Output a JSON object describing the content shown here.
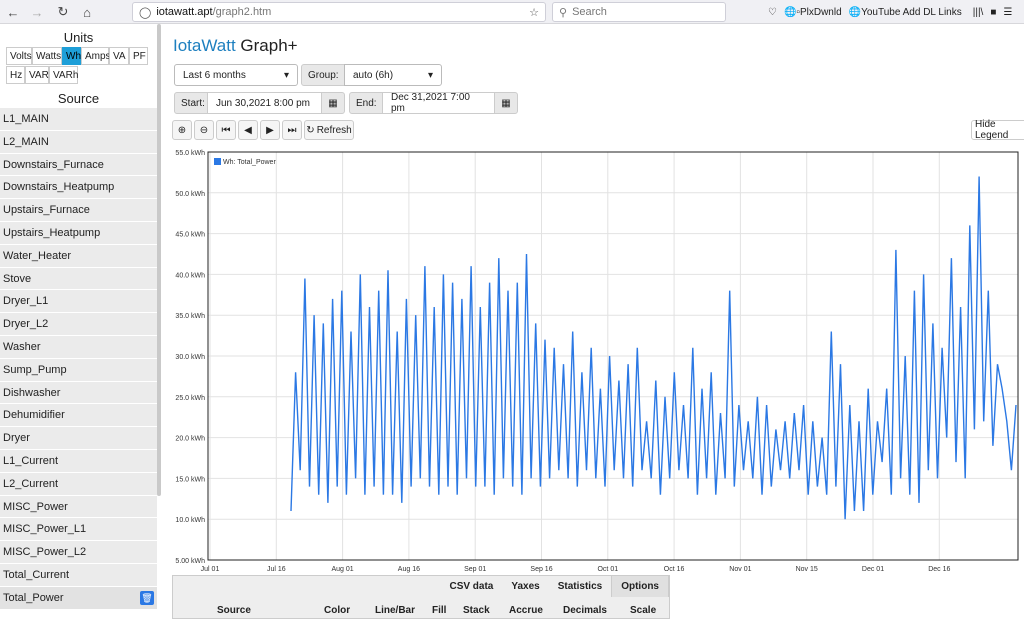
{
  "browser": {
    "url_host": "iotawatt.apt",
    "url_path": "/graph2.htm",
    "search_placeholder": "Search",
    "bookmarks": [
      "PlxDwnld",
      "YouTube Add DL Links"
    ]
  },
  "app": {
    "brand": "IotaWatt",
    "title": "Graph+"
  },
  "sidebar": {
    "units_title": "Units",
    "units": [
      "Volts",
      "Watts",
      "Wh",
      "Amps",
      "VA",
      "PF",
      "Hz",
      "VAR",
      "VARh"
    ],
    "active_unit": "Wh",
    "source_title": "Source",
    "sources": [
      "L1_MAIN",
      "L2_MAIN",
      "Downstairs_Furnace",
      "Downstairs_Heatpump",
      "Upstairs_Furnace",
      "Upstairs_Heatpump",
      "Water_Heater",
      "Stove",
      "Dryer_L1",
      "Dryer_L2",
      "Washer",
      "Sump_Pump",
      "Dishwasher",
      "Dehumidifier",
      "Dryer",
      "L1_Current",
      "L2_Current",
      "MISC_Power",
      "MISC_Power_L1",
      "MISC_Power_L2",
      "Total_Current",
      "Total_Power"
    ]
  },
  "controls": {
    "period": "Last 6 months",
    "group_label": "Group:",
    "group": "auto (6h)",
    "start_label": "Start:",
    "start_value": "Jun 30,2021 8:00 pm",
    "end_label": "End:",
    "end_value": "Dec 31,2021 7:00 pm",
    "refresh": "Refresh",
    "hide_legend": "Hide Legend"
  },
  "tabs": [
    "CSV data",
    "Yaxes",
    "Statistics",
    "Options"
  ],
  "active_tab": "Options",
  "table_headers": [
    "Source",
    "Color",
    "Line/Bar",
    "Fill",
    "Stack",
    "Accrue",
    "Decimals",
    "Scale"
  ],
  "colors": {
    "series": "#2b78e4",
    "brand": "#1d7fbf",
    "active_unit": "#1e9fd8"
  },
  "chart_data": {
    "type": "line",
    "legend": "Wh: Total_Power",
    "y_ticks": [
      "55.0 kWh",
      "50.0 kWh",
      "45.0 kWh",
      "40.0 kWh",
      "35.0 kWh",
      "30.0 kWh",
      "25.0 kWh",
      "20.0 kWh",
      "15.0 kWh",
      "10.0 kWh",
      "5.00 kWh"
    ],
    "x_ticks": [
      "Jul 01",
      "Jul 16",
      "Aug 01",
      "Aug 16",
      "Sep 01",
      "Sep 16",
      "Oct 01",
      "Oct 16",
      "Nov 01",
      "Nov 15",
      "Dec 01",
      "Dec 16"
    ],
    "ylim": [
      5,
      55
    ],
    "grid": true,
    "series": [
      {
        "name": "Wh: Total_Power",
        "values": [
          11,
          28,
          16,
          39.5,
          14,
          35,
          13,
          34,
          12,
          37,
          14,
          38,
          13,
          33,
          15,
          40,
          13,
          36,
          14,
          38,
          13,
          40.5,
          13,
          33,
          12,
          37,
          14,
          35,
          15,
          41,
          14,
          36,
          13,
          40,
          14,
          39,
          13,
          37,
          15,
          41,
          14,
          36,
          14,
          39,
          13,
          42,
          15,
          38,
          14,
          39,
          13,
          42.5,
          15,
          34,
          14,
          32,
          15,
          31,
          16,
          29,
          15,
          33,
          14,
          28,
          16,
          31,
          15,
          26,
          14,
          30,
          16,
          27,
          15,
          29,
          14,
          31,
          16,
          22,
          15,
          27,
          13,
          25,
          15,
          28,
          16,
          24,
          15,
          31,
          13,
          26,
          15,
          28,
          13,
          23,
          15,
          38,
          14,
          24,
          16,
          22,
          15,
          25,
          13,
          24,
          14,
          21,
          16,
          22,
          15,
          23,
          16,
          24,
          13,
          22,
          14,
          20,
          13,
          33,
          14,
          29,
          10,
          24,
          11,
          22,
          11,
          26,
          13,
          22,
          17,
          26,
          13,
          43,
          15,
          30,
          13,
          38,
          12,
          40,
          16,
          34,
          15,
          31,
          20,
          42,
          17,
          36,
          15,
          46,
          21,
          52,
          22,
          38,
          19,
          29,
          26,
          22,
          16,
          24
        ],
        "peak_value": 52.3
      }
    ]
  }
}
